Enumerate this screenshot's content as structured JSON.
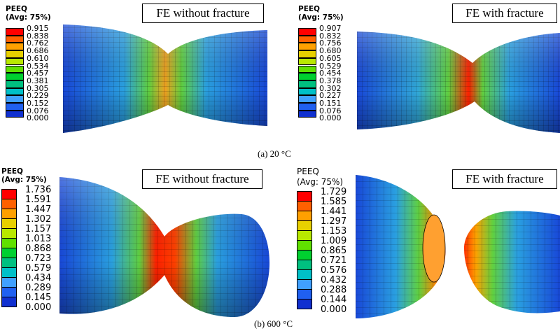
{
  "panels": [
    {
      "label": "FE without fracture",
      "legend_title_1": "PEEQ",
      "legend_title_2": "(Avg: 75%)",
      "values": [
        "0.915",
        "0.838",
        "0.762",
        "0.686",
        "0.610",
        "0.534",
        "0.457",
        "0.381",
        "0.305",
        "0.229",
        "0.152",
        "0.076",
        "0.000"
      ]
    },
    {
      "label": "FE with fracture",
      "legend_title_1": "PEEQ",
      "legend_title_2": "(Avg: 75%)",
      "values": [
        "0.907",
        "0.832",
        "0.756",
        "0.680",
        "0.605",
        "0.529",
        "0.454",
        "0.378",
        "0.302",
        "0.227",
        "0.151",
        "0.076",
        "0.000"
      ]
    },
    {
      "label": "FE without fracture",
      "legend_title_1": "PEEQ",
      "legend_title_2": "(Avg: 75%)",
      "values": [
        "1.736",
        "1.591",
        "1.447",
        "1.302",
        "1.157",
        "1.013",
        "0.868",
        "0.723",
        "0.579",
        "0.434",
        "0.289",
        "0.145",
        "0.000"
      ]
    },
    {
      "label": "FE with fracture",
      "legend_title_1": "PEEQ",
      "legend_title_2": "(Avg: 75%)",
      "values": [
        "1.729",
        "1.585",
        "1.441",
        "1.297",
        "1.153",
        "1.009",
        "0.865",
        "0.721",
        "0.576",
        "0.432",
        "0.288",
        "0.144",
        "0.000"
      ]
    }
  ],
  "captions": {
    "top": "(a) 20 °C",
    "bottom": "(b) 600 °C"
  },
  "colors": {
    "contour_scale": [
      "#ff0000",
      "#ff6000",
      "#ffa000",
      "#e8d000",
      "#b8e800",
      "#60e000",
      "#00d030",
      "#00c080",
      "#00c0c8",
      "#40a0ff",
      "#2060f0",
      "#1030d0"
    ],
    "mesh_line": "#000000"
  }
}
